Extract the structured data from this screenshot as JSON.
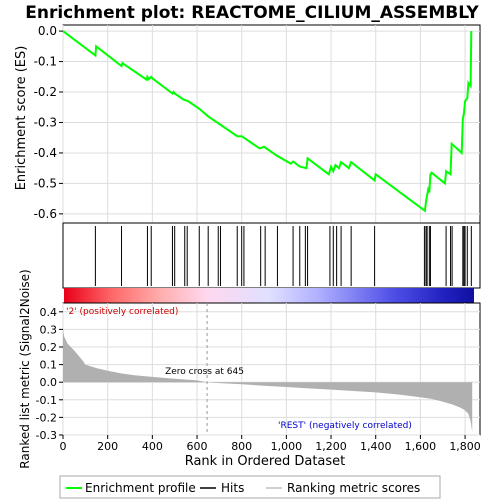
{
  "chart_data": {
    "type": "line",
    "title": "Enrichment plot: REACTOME_CILIUM_ASSEMBLY",
    "es_panel": {
      "ylabel": "Enrichment score (ES)",
      "ylim": [
        -0.63,
        0.02
      ],
      "yticks": [
        0.0,
        -0.1,
        -0.2,
        -0.3,
        -0.4,
        -0.5,
        -0.6
      ],
      "ytick_labels": [
        "0.0",
        "-0.1",
        "-0.2",
        "-0.3",
        "-0.4",
        "-0.5",
        "-0.6"
      ],
      "series": [
        {
          "x": [
            0,
            145,
            148,
            262,
            266,
            375,
            378,
            385,
            395,
            400,
            490,
            495,
            500,
            540,
            560,
            610,
            650,
            700,
            780,
            800,
            880,
            900,
            960,
            1020,
            1030,
            1060,
            1090,
            1095,
            1190,
            1200,
            1210,
            1220,
            1235,
            1245,
            1280,
            1290,
            1395,
            1400,
            1620,
            1625,
            1635,
            1640,
            1645,
            1650,
            1710,
            1715,
            1735,
            1740,
            1785,
            1790,
            1795,
            1800,
            1810,
            1815,
            1825,
            1828
          ],
          "y": [
            0.0,
            -0.08,
            -0.05,
            -0.115,
            -0.105,
            -0.16,
            -0.15,
            -0.158,
            -0.15,
            -0.155,
            -0.205,
            -0.2,
            -0.205,
            -0.225,
            -0.23,
            -0.255,
            -0.28,
            -0.305,
            -0.345,
            -0.345,
            -0.385,
            -0.38,
            -0.41,
            -0.435,
            -0.428,
            -0.445,
            -0.45,
            -0.418,
            -0.47,
            -0.445,
            -0.46,
            -0.44,
            -0.45,
            -0.43,
            -0.45,
            -0.43,
            -0.49,
            -0.47,
            -0.59,
            -0.56,
            -0.52,
            -0.53,
            -0.47,
            -0.465,
            -0.5,
            -0.46,
            -0.47,
            -0.37,
            -0.4,
            -0.29,
            -0.27,
            -0.23,
            -0.22,
            -0.17,
            -0.18,
            0.0
          ]
        }
      ]
    },
    "hits": {
      "positions": [
        145,
        262,
        378,
        395,
        490,
        500,
        545,
        556,
        610,
        650,
        695,
        705,
        780,
        800,
        810,
        885,
        905,
        960,
        1030,
        1060,
        1085,
        1095,
        1195,
        1210,
        1225,
        1245,
        1290,
        1395,
        1618,
        1625,
        1630,
        1640,
        1645,
        1715,
        1735,
        1742,
        1790,
        1795,
        1800,
        1810,
        1828
      ]
    },
    "metric_panel": {
      "ylabel": "Ranked list metric (Signal2Noise)",
      "xlabel": "Rank in Ordered Dataset",
      "xlim": [
        0,
        1840
      ],
      "xticks": [
        0,
        200,
        400,
        600,
        800,
        1000,
        1200,
        1400,
        1600,
        1800
      ],
      "xtick_labels": [
        "0",
        "200",
        "400",
        "600",
        "800",
        "1,000",
        "1,200",
        "1,400",
        "1,600",
        "1,800"
      ],
      "ylim": [
        -0.3,
        0.45
      ],
      "yticks": [
        -0.3,
        -0.2,
        -0.1,
        0.0,
        0.1,
        0.2,
        0.3,
        0.4
      ],
      "ytick_labels": [
        "-0.3",
        "-0.2",
        "-0.1",
        "0.0",
        "0.1",
        "0.2",
        "0.3",
        "0.4"
      ],
      "x": [
        0,
        5,
        20,
        50,
        90,
        100,
        150,
        200,
        260,
        320,
        400,
        500,
        600,
        645,
        700,
        800,
        900,
        1000,
        1100,
        1200,
        1300,
        1400,
        1500,
        1600,
        1650,
        1700,
        1740,
        1780,
        1800,
        1815,
        1825,
        1832
      ],
      "y": [
        0.3,
        0.26,
        0.22,
        0.18,
        0.12,
        0.1,
        0.08,
        0.065,
        0.05,
        0.04,
        0.03,
        0.02,
        0.01,
        0.0,
        -0.005,
        -0.012,
        -0.02,
        -0.027,
        -0.035,
        -0.042,
        -0.05,
        -0.058,
        -0.07,
        -0.085,
        -0.095,
        -0.11,
        -0.125,
        -0.145,
        -0.16,
        -0.18,
        -0.22,
        -0.28
      ],
      "zero_cross_label": "Zero cross at 645",
      "zero_cross": 645,
      "pos_label": "'2' (positively correlated)",
      "neg_label": "'REST' (negatively correlated)"
    },
    "legend": {
      "placement": "bottom",
      "items": [
        {
          "label": "Enrichment profile",
          "color": "#00ff00"
        },
        {
          "label": "Hits",
          "color": "#000000"
        },
        {
          "label": "Ranking metric scores",
          "color": "#c0c0c0"
        }
      ]
    },
    "colors": {
      "es_line": "#00ff00",
      "metric_fill": "#b0b0b0",
      "grid": "#dddddd",
      "pos_text": "#cc0000",
      "neg_text": "#0000cc"
    }
  }
}
